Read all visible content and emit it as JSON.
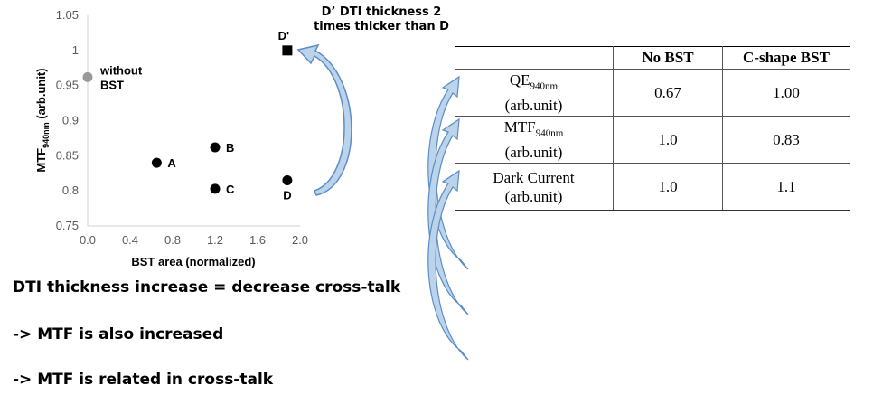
{
  "chart_data": {
    "type": "scatter",
    "xlabel": "BST area (normalized)",
    "ylabel": "MTF",
    "ylabel_sub": "940nm",
    "ylabel_suffix": " (arb.unit)",
    "xlim": [
      0.0,
      2.0
    ],
    "ylim": [
      0.75,
      1.05
    ],
    "x_ticks": [
      "0.0",
      "0.4",
      "0.8",
      "1.2",
      "1.6",
      "2.0"
    ],
    "y_ticks": [
      "0.75",
      "0.8",
      "0.85",
      "0.9",
      "0.95",
      "1",
      "1.05"
    ],
    "points": [
      {
        "label": "without BST",
        "x": 0.0,
        "y": 0.962,
        "marker": "circle",
        "color": "#999999"
      },
      {
        "label": "A",
        "x": 0.65,
        "y": 0.84,
        "marker": "circle",
        "color": "#000000"
      },
      {
        "label": "B",
        "x": 1.2,
        "y": 0.862,
        "marker": "circle",
        "color": "#000000"
      },
      {
        "label": "C",
        "x": 1.2,
        "y": 0.803,
        "marker": "circle",
        "color": "#000000"
      },
      {
        "label": "D",
        "x": 1.88,
        "y": 0.815,
        "marker": "circle",
        "color": "#000000"
      },
      {
        "label": "D'",
        "x": 1.88,
        "y": 1.0,
        "marker": "square",
        "color": "#000000"
      }
    ]
  },
  "annotation": {
    "line1": "D’ DTI thickness 2",
    "line2": "times thicker than D"
  },
  "table": {
    "headers": [
      "",
      "No BST",
      "C-shape BST"
    ],
    "rows": [
      {
        "name": "QE",
        "sub": "940nm",
        "unit": "(arb.unit)",
        "no_bst": "0.67",
        "c_shape": "1.00"
      },
      {
        "name": "MTF",
        "sub": "940nm",
        "unit": "(arb.unit)",
        "no_bst": "1.0",
        "c_shape": "0.83"
      },
      {
        "name": "Dark Current",
        "sub": "",
        "unit": "(arb.unit)",
        "no_bst": "1.0",
        "c_shape": "1.1"
      }
    ]
  },
  "captions": [
    "DTI thickness increase = decrease cross-talk",
    "-> MTF is also increased",
    "-> MTF is related in cross-talk"
  ],
  "colors": {
    "arrow_fill": "#bcd3ec",
    "arrow_stroke": "#5b8ec3",
    "point_gray": "#999999"
  }
}
